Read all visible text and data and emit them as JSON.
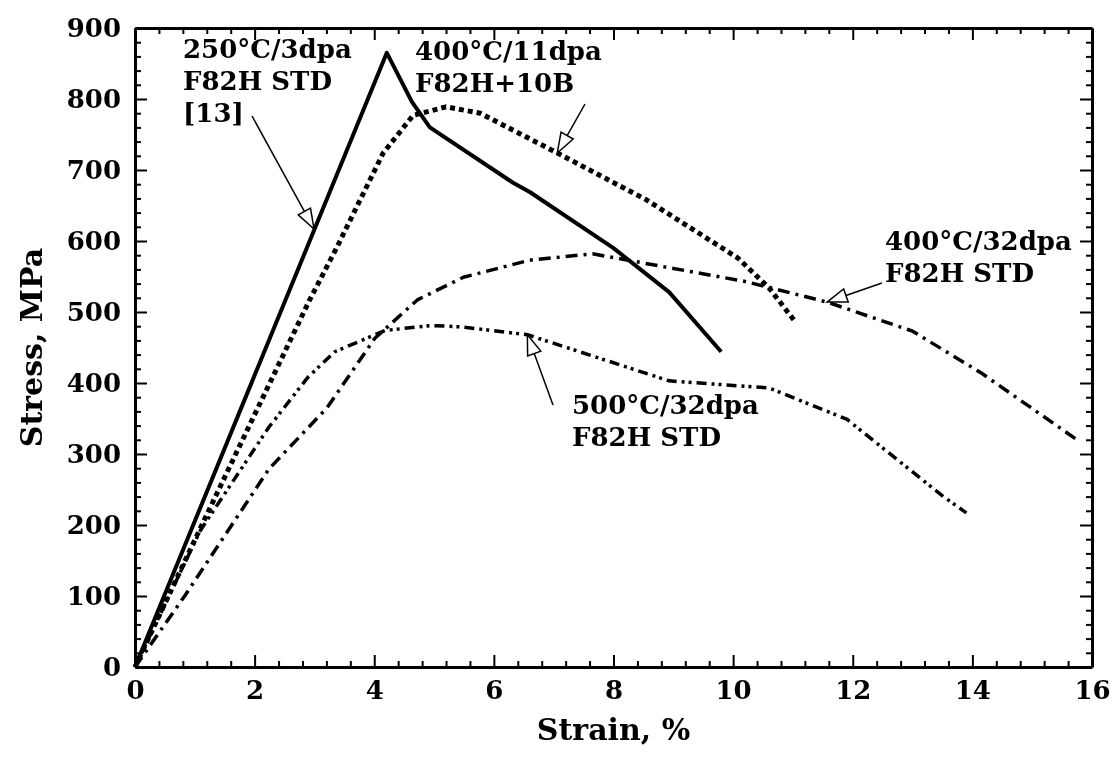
{
  "chart_data": {
    "type": "line",
    "xlabel": "Strain, %",
    "ylabel": "Stress, MPa",
    "xlim": [
      0,
      16
    ],
    "ylim": [
      0,
      900
    ],
    "xticks": [
      0,
      {
        "value": 0.4,
        "label": null
      },
      {
        "value": 0.8,
        "label": null
      },
      {
        "value": 1.2,
        "label": null
      },
      {
        "value": 1.6,
        "label": null
      },
      2,
      {
        "value": 2.4,
        "label": null
      },
      {
        "value": 2.8,
        "label": null
      },
      {
        "value": 3.2,
        "label": null
      },
      {
        "value": 3.6,
        "label": null
      },
      4,
      {
        "value": 4.4,
        "label": null
      },
      {
        "value": 4.8,
        "label": null
      },
      {
        "value": 5.2,
        "label": null
      },
      {
        "value": 5.6,
        "label": null
      },
      6,
      {
        "value": 6.4,
        "label": null
      },
      {
        "value": 6.8,
        "label": null
      },
      {
        "value": 7.2,
        "label": null
      },
      {
        "value": 7.6,
        "label": null
      },
      8,
      {
        "value": 8.4,
        "label": null
      },
      {
        "value": 8.8,
        "label": null
      },
      {
        "value": 9.2,
        "label": null
      },
      {
        "value": 9.6,
        "label": null
      },
      10,
      {
        "value": 10.4,
        "label": null
      },
      {
        "value": 10.8,
        "label": null
      },
      {
        "value": 11.2,
        "label": null
      },
      {
        "value": 11.6,
        "label": null
      },
      12,
      {
        "value": 12.4,
        "label": null
      },
      {
        "value": 12.8,
        "label": null
      },
      {
        "value": 13.2,
        "label": null
      },
      {
        "value": 13.6,
        "label": null
      },
      14,
      {
        "value": 14.4,
        "label": null
      },
      {
        "value": 14.8,
        "label": null
      },
      {
        "value": 15.2,
        "label": null
      },
      {
        "value": 15.6,
        "label": null
      },
      16
    ],
    "yticks": [
      0,
      {
        "value": 20,
        "label": null
      },
      {
        "value": 40,
        "label": null
      },
      {
        "value": 60,
        "label": null
      },
      {
        "value": 80,
        "label": null
      },
      100,
      {
        "value": 120,
        "label": null
      },
      {
        "value": 140,
        "label": null
      },
      {
        "value": 160,
        "label": null
      },
      {
        "value": 180,
        "label": null
      },
      200,
      {
        "value": 220,
        "label": null
      },
      {
        "value": 240,
        "label": null
      },
      {
        "value": 260,
        "label": null
      },
      {
        "value": 280,
        "label": null
      },
      300,
      {
        "value": 320,
        "label": null
      },
      {
        "value": 340,
        "label": null
      },
      {
        "value": 360,
        "label": null
      },
      {
        "value": 380,
        "label": null
      },
      400,
      {
        "value": 420,
        "label": null
      },
      {
        "value": 440,
        "label": null
      },
      {
        "value": 460,
        "label": null
      },
      {
        "value": 480,
        "label": null
      },
      500,
      {
        "value": 520,
        "label": null
      },
      {
        "value": 540,
        "label": null
      },
      {
        "value": 560,
        "label": null
      },
      {
        "value": 580,
        "label": null
      },
      600,
      {
        "value": 620,
        "label": null
      },
      {
        "value": 640,
        "label": null
      },
      {
        "value": 660,
        "label": null
      },
      {
        "value": 680,
        "label": null
      },
      700,
      {
        "value": 720,
        "label": null
      },
      {
        "value": 740,
        "label": null
      },
      {
        "value": 760,
        "label": null
      },
      {
        "value": 780,
        "label": null
      },
      800,
      {
        "value": 820,
        "label": null
      },
      {
        "value": 840,
        "label": null
      },
      {
        "value": 860,
        "label": null
      },
      {
        "value": 880,
        "label": null
      },
      900
    ],
    "grid": false,
    "marker": "none",
    "annotations": [
      "250°C/3dpa\nF82H STD\n[13]",
      {
        "text": "400°C/11dpa\nF82H+10B",
        "x": 7.06,
        "y": 724
      },
      {
        "text": "400°C/32dpa\nF82H STD",
        "x": 11.57,
        "y": 514
      },
      {
        "text": "500°C/32dpa\nF82H STD",
        "x": 6.56,
        "y": 468
      }
    ],
    "series": [
      {
        "color": "#000000",
        "line_style": "solid",
        "x": [
          0,
          4.21,
          4.63,
          4.93,
          6.32,
          6.6,
          8.0,
          8.93,
          9.8
        ],
        "values": [
          0,
          865,
          796,
          760,
          682,
          669,
          590,
          528,
          444
        ]
      },
      {
        "color": "#000000",
        "line_style": "dotted",
        "x": [
          0,
          1.09,
          1.69,
          2.92,
          3.38,
          4.15,
          4.65,
          5.2,
          5.77,
          7.06,
          8.55,
          10.08,
          10.6,
          11.05
        ],
        "values": [
          0,
          195,
          301,
          517,
          592,
          724,
          777,
          789,
          780,
          724,
          658,
          576,
          534,
          485
        ]
      },
      {
        "color": "#000000",
        "line_style": "dashdot",
        "x": [
          0,
          0.83,
          2.24,
          3.21,
          4.01,
          4.72,
          5.49,
          6.6,
          7.65,
          10.2,
          11.57,
          13.0,
          14.15,
          15.75
        ],
        "values": [
          0,
          100,
          279,
          365,
          463,
          517,
          549,
          573,
          582,
          543,
          514,
          473,
          414,
          320
        ]
      },
      {
        "color": "#000000",
        "line_style": "dashdotdot",
        "x": [
          0,
          1.09,
          2.24,
          2.89,
          3.34,
          4.18,
          4.95,
          5.46,
          6.56,
          8.93,
          10.6,
          11.9,
          13.5,
          13.9
        ],
        "values": [
          0,
          192,
          338,
          408,
          444,
          474,
          481,
          479,
          468,
          403,
          393,
          349,
          241,
          217
        ]
      }
    ]
  }
}
